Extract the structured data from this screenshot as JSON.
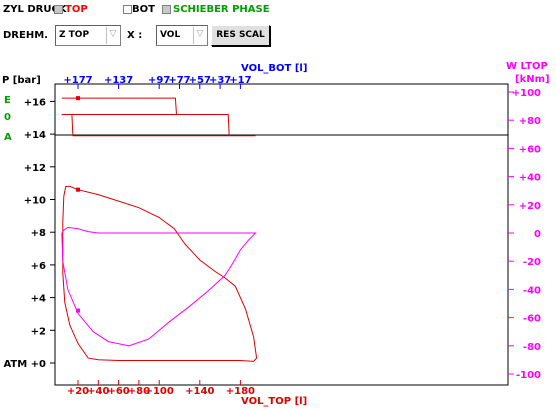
{
  "toolbar": {
    "title": "ZYL DRUCK",
    "checkboxes": [
      {
        "label": "TOP",
        "color": "#ff0000",
        "checked": true
      },
      {
        "label": "BOT",
        "color": "#000000",
        "checked": false
      },
      {
        "label": "SCHIEBER PHASE",
        "color": "#00a000",
        "checked": true
      }
    ],
    "drehm_label": "DREHM.",
    "drehm_value": "Z TOP",
    "x_label": "X :",
    "x_value": "VOL",
    "button_label": "RES SCAL"
  },
  "colors": {
    "top": "#dd0000",
    "blue_axis": "#0000ff",
    "moment": "#ff00ff",
    "phase_letters": "#00a000"
  },
  "chart_data": {
    "type": "line",
    "left_axis": {
      "title": "P [bar]",
      "ticks": [
        "+16",
        "+14",
        "+12",
        "+10",
        "+8",
        "+6",
        "+4",
        "+2",
        "ATM +0"
      ]
    },
    "phase_labels": [
      "E",
      "0",
      "A"
    ],
    "right_axis": {
      "title": "W LTOP",
      "unit": "[kNm]",
      "ticks": [
        "+100",
        "+80",
        "+60",
        "+40",
        "+20",
        "0",
        "-20",
        "-40",
        "-60",
        "-80",
        "-100"
      ]
    },
    "top_axis": {
      "title": "VOL_BOT [l]",
      "ticks": [
        "+177",
        "+137",
        "+97",
        "+77",
        "+57",
        "+37",
        "+17"
      ]
    },
    "bottom_axis": {
      "title": "VOL_TOP [l]",
      "ticks": [
        "+20",
        "+40",
        "+60",
        "+80",
        "+100",
        "+140",
        "+180"
      ]
    },
    "marker_x": 20,
    "phase_series": [
      {
        "name": "E",
        "points": [
          [
            4,
            16.2
          ],
          [
            116,
            16.2
          ],
          [
            117,
            15.2
          ],
          [
            4,
            15.2
          ]
        ]
      },
      {
        "name": "A",
        "points": [
          [
            4,
            15.2
          ],
          [
            14,
            15.2
          ],
          [
            15,
            13.9
          ],
          [
            195,
            13.9
          ]
        ]
      },
      {
        "name": "0",
        "points": [
          [
            117,
            15.2
          ],
          [
            168,
            15.2
          ],
          [
            169,
            13.9
          ]
        ]
      }
    ],
    "pressure_series": [
      {
        "name": "TOP",
        "points": [
          [
            5,
            8.6
          ],
          [
            6,
            10.2
          ],
          [
            8,
            10.8
          ],
          [
            12,
            10.8
          ],
          [
            20,
            10.6
          ],
          [
            40,
            10.3
          ],
          [
            60,
            9.9
          ],
          [
            80,
            9.5
          ],
          [
            100,
            8.9
          ],
          [
            115,
            8.2
          ],
          [
            125,
            7.3
          ],
          [
            140,
            6.3
          ],
          [
            155,
            5.6
          ],
          [
            165,
            5.2
          ],
          [
            175,
            4.7
          ],
          [
            185,
            3.3
          ],
          [
            193,
            1.6
          ],
          [
            196,
            0.3
          ],
          [
            193,
            0.1
          ],
          [
            180,
            0.15
          ],
          [
            140,
            0.15
          ],
          [
            100,
            0.15
          ],
          [
            60,
            0.15
          ],
          [
            40,
            0.2
          ],
          [
            30,
            0.3
          ],
          [
            20,
            1.2
          ],
          [
            12,
            2.3
          ],
          [
            7,
            3.7
          ],
          [
            5,
            5.5
          ],
          [
            5,
            8.6
          ]
        ]
      }
    ],
    "moment_series": [
      {
        "name": "W LTOP",
        "points": [
          [
            4,
            0
          ],
          [
            6,
            2
          ],
          [
            10,
            4
          ],
          [
            20,
            3
          ],
          [
            30,
            1
          ],
          [
            40,
            0
          ],
          [
            80,
            0
          ],
          [
            120,
            0
          ],
          [
            160,
            0
          ],
          [
            195,
            0
          ],
          [
            188,
            -5
          ],
          [
            180,
            -12
          ],
          [
            172,
            -22
          ],
          [
            165,
            -30
          ],
          [
            150,
            -40
          ],
          [
            130,
            -52
          ],
          [
            110,
            -63
          ],
          [
            90,
            -75
          ],
          [
            70,
            -80
          ],
          [
            50,
            -77
          ],
          [
            35,
            -70
          ],
          [
            20,
            -57
          ],
          [
            10,
            -40
          ],
          [
            5,
            -20
          ],
          [
            4,
            0
          ]
        ]
      }
    ],
    "grid": false
  }
}
